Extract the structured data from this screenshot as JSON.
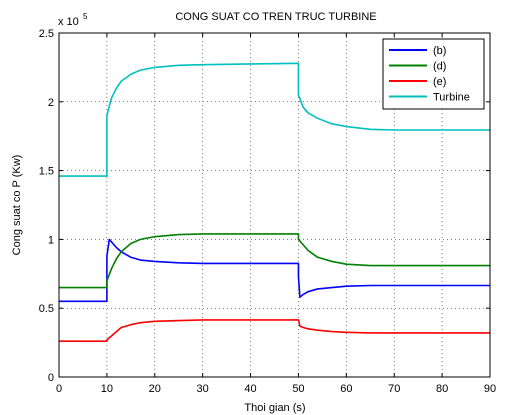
{
  "chart_data": {
    "type": "line",
    "title": "CONG SUAT CO TREN TRUC TURBINE",
    "xlabel": "Thoi gian (s)",
    "ylabel": "Cong suat co P (Kw)",
    "y_exponent_label": "x 10",
    "y_exponent_value": "5",
    "xlim": [
      0,
      90
    ],
    "ylim": [
      0,
      2.5
    ],
    "x_ticks": [
      "0",
      "10",
      "20",
      "30",
      "40",
      "50",
      "60",
      "70",
      "80",
      "90"
    ],
    "y_ticks": [
      "0",
      "0.5",
      "1",
      "1.5",
      "2",
      "2.5"
    ],
    "grid": true,
    "legend_position": "top-right",
    "series": [
      {
        "name": "(b)",
        "color": "#0000ff",
        "x": [
          0,
          10,
          10,
          10.5,
          11,
          12,
          13,
          15,
          17,
          20,
          25,
          30,
          40,
          50,
          50,
          50.3,
          51,
          52,
          54,
          57,
          60,
          65,
          70,
          80,
          90
        ],
        "y": [
          0.55,
          0.55,
          0.88,
          1.0,
          0.98,
          0.94,
          0.91,
          0.87,
          0.85,
          0.84,
          0.83,
          0.825,
          0.825,
          0.825,
          0.73,
          0.58,
          0.6,
          0.62,
          0.64,
          0.65,
          0.66,
          0.665,
          0.665,
          0.665,
          0.665
        ]
      },
      {
        "name": "(d)",
        "color": "#008000",
        "x": [
          0,
          10,
          10,
          11,
          12,
          13,
          15,
          17,
          20,
          25,
          30,
          40,
          50,
          50,
          51,
          52,
          54,
          57,
          60,
          65,
          70,
          80,
          90
        ],
        "y": [
          0.65,
          0.65,
          0.7,
          0.79,
          0.86,
          0.91,
          0.97,
          1.0,
          1.02,
          1.035,
          1.04,
          1.04,
          1.04,
          1.0,
          0.96,
          0.92,
          0.87,
          0.84,
          0.82,
          0.81,
          0.81,
          0.81,
          0.81
        ]
      },
      {
        "name": "(e)",
        "color": "#ff0000",
        "x": [
          0,
          10,
          10,
          11,
          12,
          13,
          15,
          17,
          20,
          25,
          30,
          40,
          50,
          50.3,
          51,
          52,
          54,
          57,
          60,
          65,
          70,
          80,
          90
        ],
        "y": [
          0.26,
          0.26,
          0.27,
          0.3,
          0.33,
          0.36,
          0.38,
          0.395,
          0.405,
          0.41,
          0.415,
          0.415,
          0.415,
          0.37,
          0.36,
          0.35,
          0.34,
          0.33,
          0.325,
          0.32,
          0.32,
          0.32,
          0.32
        ]
      },
      {
        "name": "Turbine",
        "color": "#00bfbf",
        "x": [
          0,
          10,
          10,
          10.5,
          11,
          12,
          13,
          15,
          17,
          20,
          25,
          30,
          40,
          50,
          50,
          51,
          52,
          54,
          57,
          60,
          65,
          70,
          80,
          90
        ],
        "y": [
          1.46,
          1.46,
          1.9,
          1.97,
          2.03,
          2.1,
          2.15,
          2.2,
          2.23,
          2.25,
          2.265,
          2.27,
          2.275,
          2.28,
          2.05,
          1.96,
          1.92,
          1.88,
          1.84,
          1.82,
          1.8,
          1.795,
          1.795,
          1.795
        ]
      }
    ]
  }
}
